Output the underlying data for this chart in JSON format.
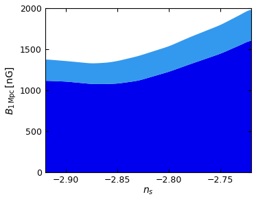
{
  "xlim": [
    -2.92,
    -2.72
  ],
  "ylim": [
    0,
    2000
  ],
  "xticks": [
    -2.9,
    -2.85,
    -2.8,
    -2.75
  ],
  "yticks": [
    0,
    500,
    1000,
    1500,
    2000
  ],
  "xlabel": "$n_s$",
  "ylabel": "$B_{\\mathrm{1\\,Mpc}}\\,[\\mathrm{nG}]$",
  "color_dark_blue": "#0000EE",
  "color_light_blue": "#3399EE",
  "x_start": -2.92,
  "x_end": -2.72,
  "n_points": 500,
  "dark_upper_pts": [
    [
      -2.92,
      1120
    ],
    [
      -2.9,
      1110
    ],
    [
      -2.875,
      1080
    ],
    [
      -2.86,
      1080
    ],
    [
      -2.85,
      1085
    ],
    [
      -2.83,
      1120
    ],
    [
      -2.8,
      1230
    ],
    [
      -2.78,
      1320
    ],
    [
      -2.75,
      1450
    ],
    [
      -2.73,
      1560
    ],
    [
      -2.72,
      1620
    ]
  ],
  "light_upper_pts": [
    [
      -2.92,
      1380
    ],
    [
      -2.9,
      1360
    ],
    [
      -2.875,
      1330
    ],
    [
      -2.86,
      1340
    ],
    [
      -2.85,
      1360
    ],
    [
      -2.83,
      1420
    ],
    [
      -2.8,
      1540
    ],
    [
      -2.78,
      1650
    ],
    [
      -2.75,
      1800
    ],
    [
      -2.73,
      1930
    ],
    [
      -2.72,
      2000
    ]
  ]
}
